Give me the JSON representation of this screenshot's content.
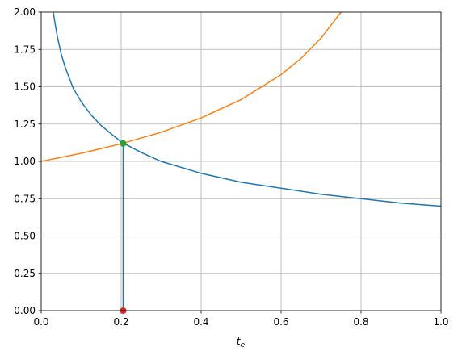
{
  "chart_data": {
    "type": "line",
    "xlabel": {
      "main": "t",
      "sub": "e"
    },
    "xlim": [
      0,
      1
    ],
    "ylim": [
      0,
      2
    ],
    "grid": true,
    "xticks": [
      {
        "value": 0,
        "label": "0.0"
      },
      {
        "value": 0.2,
        "label": "0.2"
      },
      {
        "value": 0.4,
        "label": "0.4"
      },
      {
        "value": 0.6,
        "label": "0.6"
      },
      {
        "value": 0.8,
        "label": "0.8"
      },
      {
        "value": 1,
        "label": "1.0"
      }
    ],
    "yticks": [
      {
        "value": 0,
        "label": "0.00"
      },
      {
        "value": 0.25,
        "label": "0.25"
      },
      {
        "value": 0.5,
        "label": "0.50"
      },
      {
        "value": 0.75,
        "label": "0.75"
      },
      {
        "value": 1,
        "label": "1.00"
      },
      {
        "value": 1.25,
        "label": "1.25"
      },
      {
        "value": 1.5,
        "label": "1.50"
      },
      {
        "value": 1.75,
        "label": "1.75"
      },
      {
        "value": 2,
        "label": "2.00"
      }
    ],
    "series": [
      {
        "color": "#1f77b4",
        "x": [
          0.03,
          0.04,
          0.05,
          0.06,
          0.08,
          0.1,
          0.125,
          0.15,
          0.2,
          0.25,
          0.3,
          0.4,
          0.5,
          0.6,
          0.7,
          0.8,
          0.9,
          1.0
        ],
        "values": [
          2.0,
          1.84,
          1.72,
          1.63,
          1.49,
          1.4,
          1.31,
          1.24,
          1.13,
          1.06,
          1.0,
          0.92,
          0.86,
          0.82,
          0.78,
          0.75,
          0.72,
          0.7
        ]
      },
      {
        "color": "#ff7f0e",
        "x": [
          0,
          0.1,
          0.2,
          0.3,
          0.4,
          0.5,
          0.6,
          0.65,
          0.7,
          0.75
        ],
        "values": [
          1.0,
          1.054,
          1.118,
          1.195,
          1.291,
          1.414,
          1.581,
          1.69,
          1.826,
          2.0
        ]
      },
      {
        "color": "#1f77b4",
        "x": [
          0.205,
          0.205
        ],
        "values": [
          1.12,
          0
        ]
      }
    ],
    "markers": [
      {
        "x": 0.205,
        "y": 1.12,
        "color": "#2ca02c"
      },
      {
        "x": 0.205,
        "y": 0,
        "color": "#d62728"
      }
    ]
  }
}
